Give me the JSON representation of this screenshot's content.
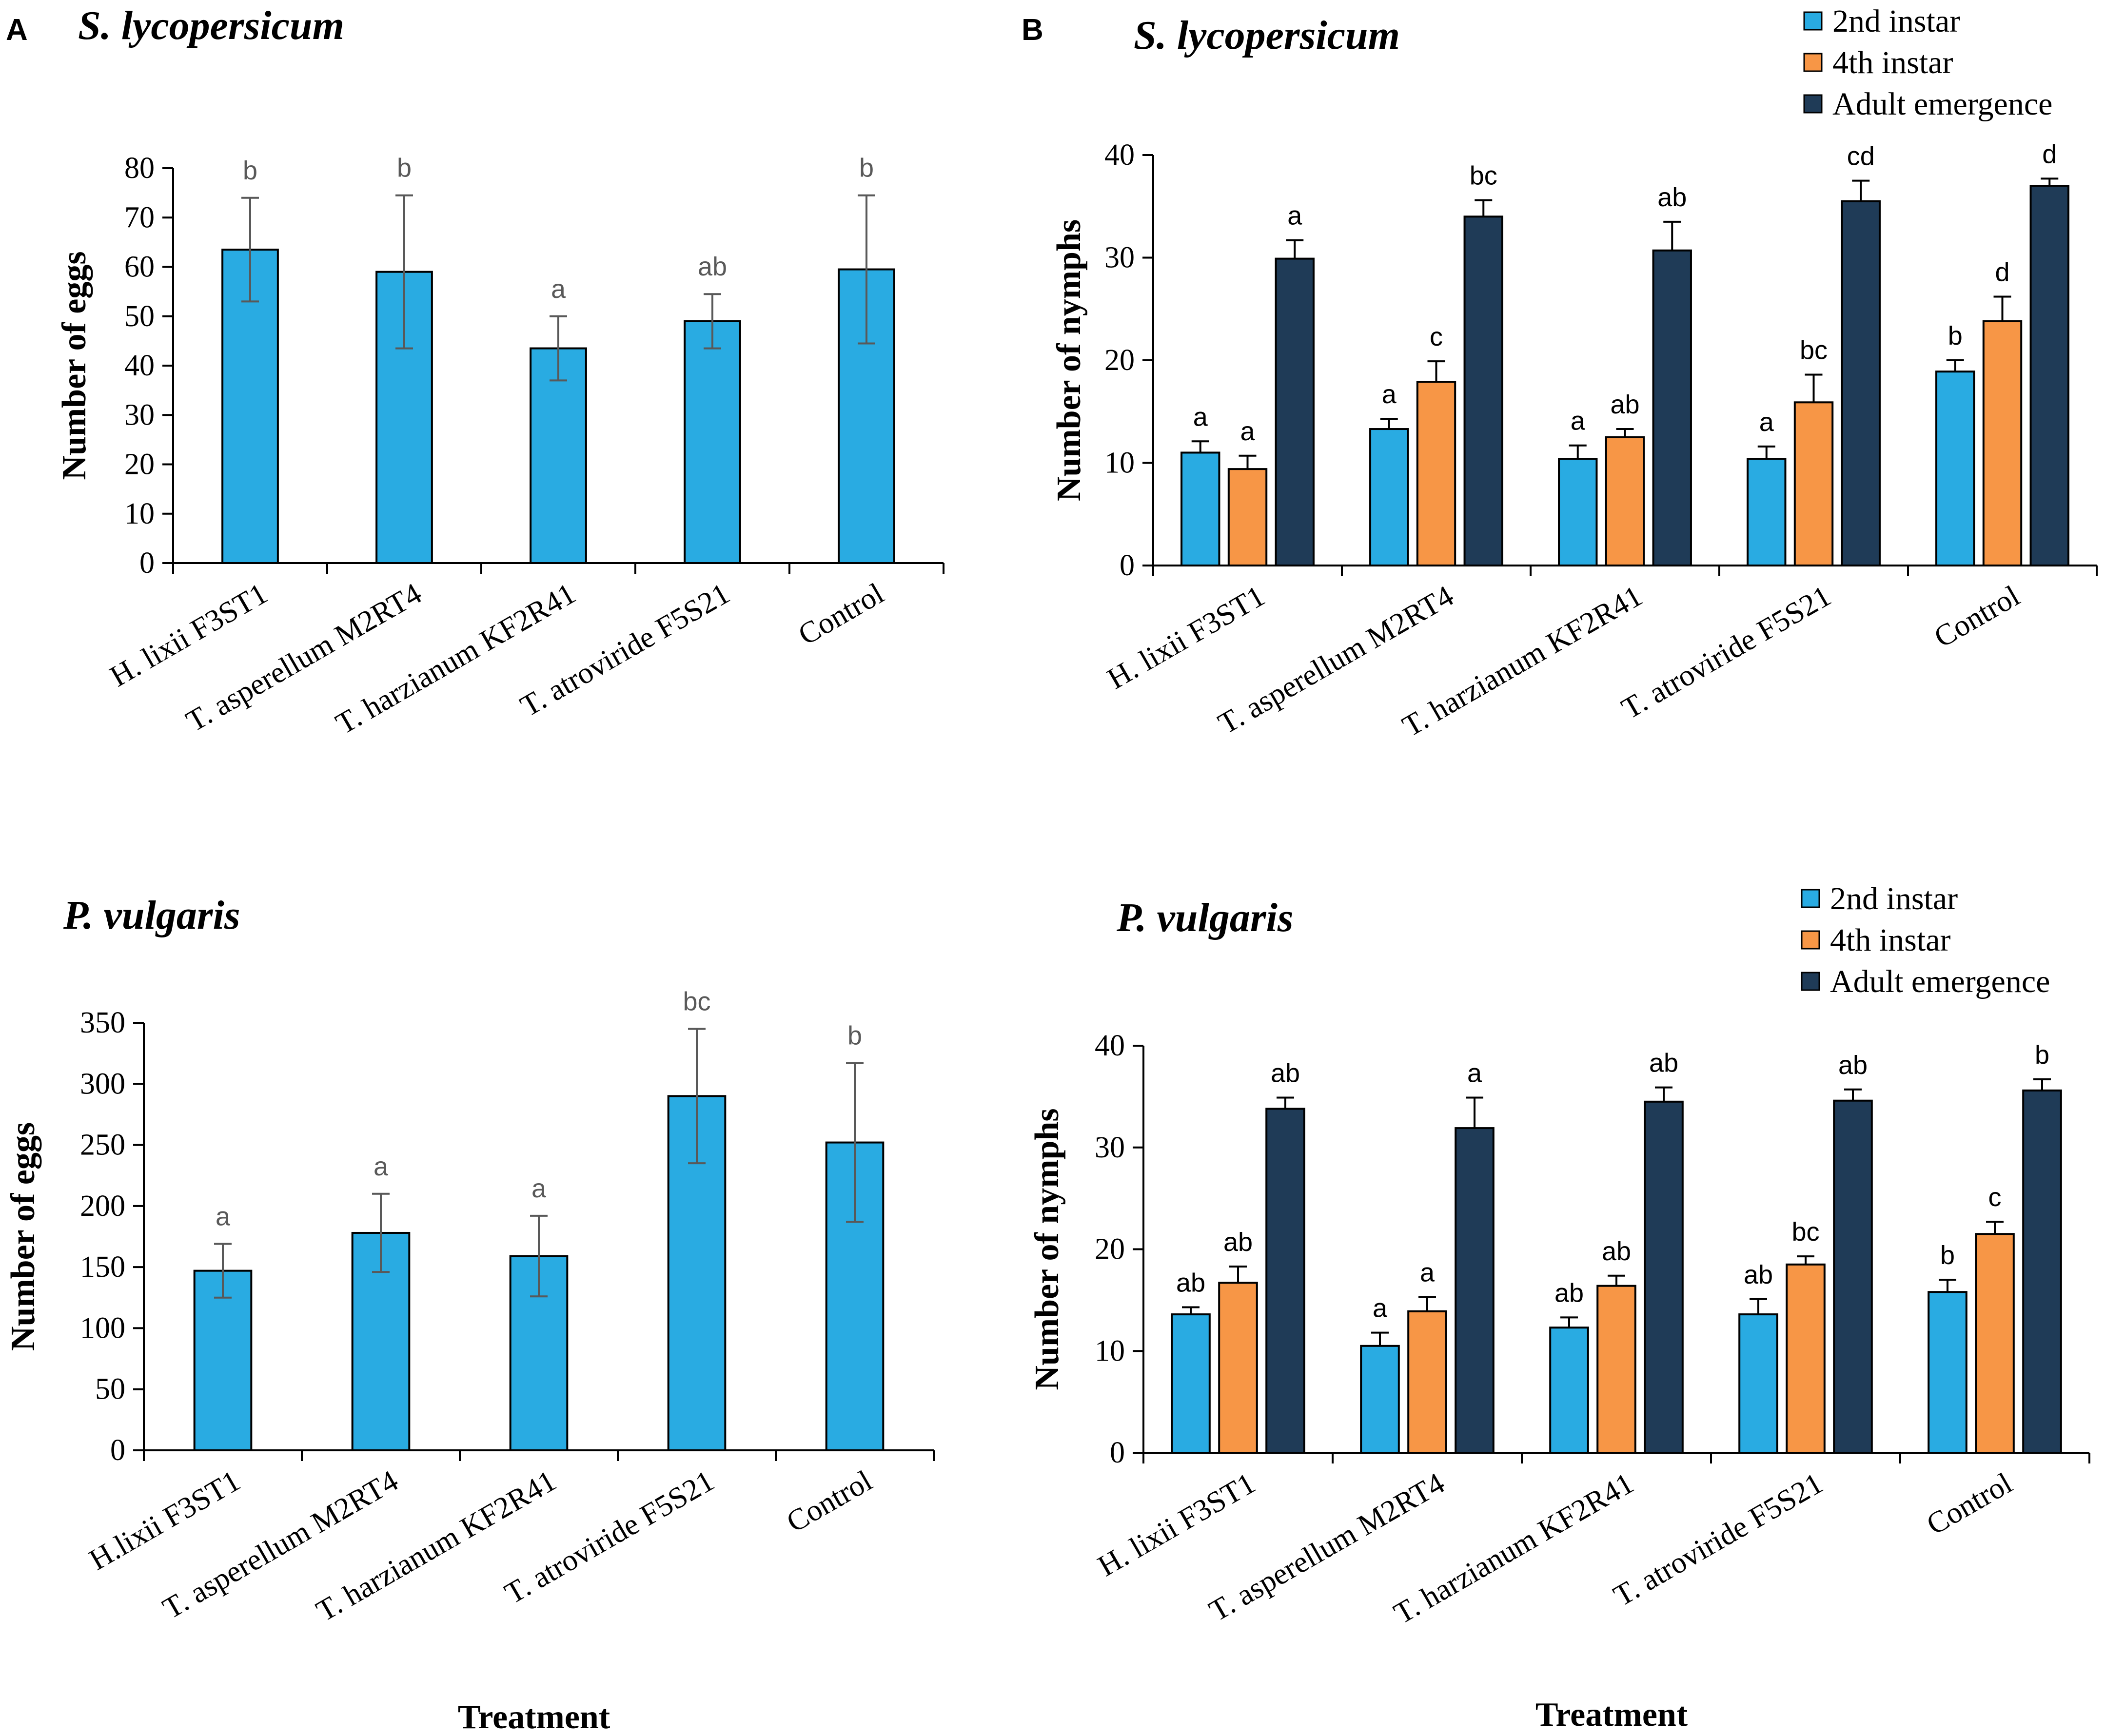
{
  "panels": {
    "A": "A",
    "B": "B"
  },
  "colors": {
    "single_bar": "#29ABE2",
    "instar2": "#29ABE2",
    "instar4": "#F79646",
    "adult": "#1F3B57",
    "bar_edge": "#000000",
    "sig_single": "#595959",
    "sig_multi": "#000000",
    "error_single": "#595959",
    "error_multi": "#000000"
  },
  "chart_data": [
    {
      "id": "a-top",
      "type": "bar",
      "title": "S. lycopersicum",
      "xlabel": "",
      "ylabel": "Number of eggs",
      "ylim": [
        0,
        80
      ],
      "yticks": [
        0,
        10,
        20,
        30,
        40,
        50,
        60,
        70,
        80
      ],
      "grid": false,
      "legend": "none",
      "categories": [
        "H. lixii F3ST1",
        "T. asperellum M2RT4",
        "T. harzianum KF2R41",
        "T. atroviride F5S21",
        "Control"
      ],
      "series": [
        {
          "name": "Eggs",
          "color": "#29ABE2",
          "values": [
            63.5,
            59,
            43.5,
            49,
            59.5
          ],
          "errors": [
            10.5,
            15.5,
            6.5,
            5.5,
            15
          ],
          "labels": [
            "b",
            "b",
            "a",
            "ab",
            "b"
          ]
        }
      ]
    },
    {
      "id": "b-top",
      "type": "bar",
      "title": "S. lycopersicum",
      "xlabel": "",
      "ylabel": "Number of nymphs",
      "ylim": [
        0,
        40
      ],
      "yticks": [
        0,
        10,
        20,
        30,
        40
      ],
      "grid": false,
      "legend": "top-right",
      "categories": [
        "H. lixii F3ST1",
        "T. asperellum M2RT4",
        "T. harzianum KF2R41",
        "T. atroviride F5S21",
        "Control"
      ],
      "series": [
        {
          "name": "2nd instar",
          "color": "#29ABE2",
          "values": [
            11,
            13.3,
            10.4,
            10.4,
            18.9
          ],
          "errors": [
            1.1,
            1.0,
            1.3,
            1.2,
            1.1
          ],
          "labels": [
            "a",
            "a",
            "a",
            "a",
            "b"
          ]
        },
        {
          "name": "4th instar",
          "color": "#F79646",
          "values": [
            9.4,
            17.9,
            12.5,
            15.9,
            23.8
          ],
          "errors": [
            1.3,
            2.0,
            0.8,
            2.7,
            2.4
          ],
          "labels": [
            "a",
            "c",
            "ab",
            "bc",
            "d"
          ]
        },
        {
          "name": "Adult emergence",
          "color": "#1F3B57",
          "values": [
            29.9,
            34,
            30.7,
            35.5,
            37
          ],
          "errors": [
            1.8,
            1.6,
            2.8,
            2.0,
            0.7
          ],
          "labels": [
            "a",
            "bc",
            "ab",
            "cd",
            "d"
          ]
        }
      ]
    },
    {
      "id": "a-bottom",
      "type": "bar",
      "title": "P. vulgaris",
      "xlabel": "Treatment",
      "ylabel": "Number of eggs",
      "ylim": [
        0,
        350
      ],
      "yticks": [
        0,
        50,
        100,
        150,
        200,
        250,
        300,
        350
      ],
      "grid": false,
      "legend": "none",
      "categories": [
        "H.lixii F3ST1",
        "T. asperellum M2RT4",
        "T. harzianum KF2R41",
        "T. atroviride F5S21",
        "Control"
      ],
      "series": [
        {
          "name": "Eggs",
          "color": "#29ABE2",
          "values": [
            147,
            178,
            159,
            290,
            252
          ],
          "errors": [
            22,
            32,
            33,
            55,
            65
          ],
          "labels": [
            "a",
            "a",
            "a",
            "bc",
            "b"
          ]
        }
      ]
    },
    {
      "id": "b-bottom",
      "type": "bar",
      "title": "P. vulgaris",
      "xlabel": "Treatment",
      "ylabel": "Number of nymphs",
      "ylim": [
        0,
        40
      ],
      "yticks": [
        0,
        10,
        20,
        30,
        40
      ],
      "grid": false,
      "legend": "top-right",
      "categories": [
        "H. lixii F3ST1",
        "T. asperellum M2RT4",
        "T. harzianum KF2R41",
        "T. atroviride F5S21",
        "Control"
      ],
      "series": [
        {
          "name": "2nd instar",
          "color": "#29ABE2",
          "values": [
            13.6,
            10.5,
            12.3,
            13.6,
            15.8
          ],
          "errors": [
            0.7,
            1.3,
            1.0,
            1.5,
            1.2
          ],
          "labels": [
            "ab",
            "a",
            "ab",
            "ab",
            "b"
          ]
        },
        {
          "name": "4th instar",
          "color": "#F79646",
          "values": [
            16.7,
            13.9,
            16.4,
            18.5,
            21.5
          ],
          "errors": [
            1.6,
            1.4,
            1.0,
            0.8,
            1.2
          ],
          "labels": [
            "ab",
            "a",
            "ab",
            "bc",
            "c"
          ]
        },
        {
          "name": "Adult emergence",
          "color": "#1F3B57",
          "values": [
            33.8,
            31.9,
            34.5,
            34.6,
            35.6
          ],
          "errors": [
            1.1,
            3.0,
            1.4,
            1.1,
            1.1
          ],
          "labels": [
            "ab",
            "a",
            "ab",
            "ab",
            "b"
          ]
        }
      ]
    }
  ]
}
